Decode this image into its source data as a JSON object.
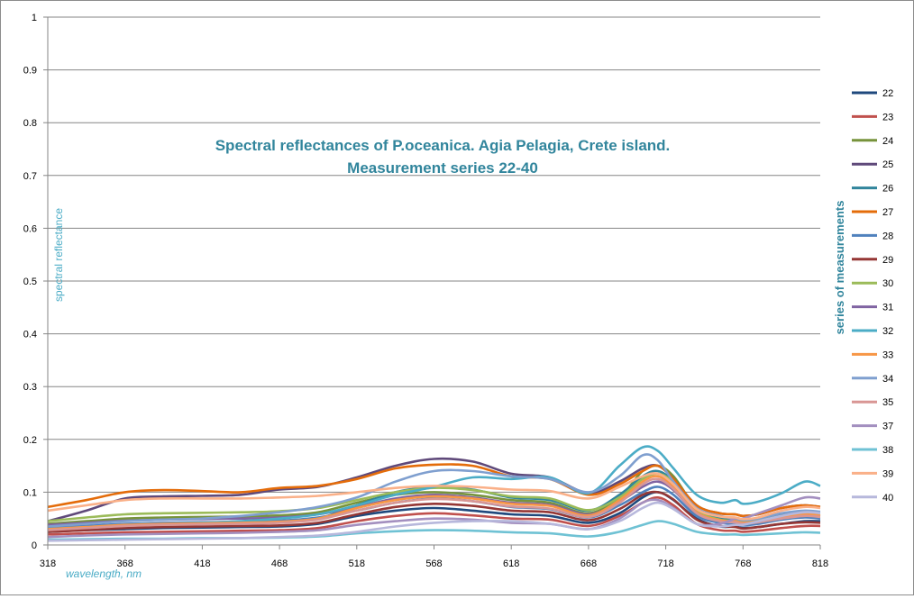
{
  "chart_data": {
    "type": "line",
    "title_lines": [
      "Spectral reflectances of P.oceanica. Agia Pelagia, Crete island.",
      "Measurement series 22-40"
    ],
    "xlabel": "wavelength, nm",
    "ylabel": "spectral reflectance",
    "legend_title": "series of measurements",
    "legend_position": "right",
    "grid": true,
    "xlim": [
      318,
      818
    ],
    "ylim": [
      0,
      1
    ],
    "x_ticks": [
      "318",
      "368",
      "418",
      "468",
      "518",
      "568",
      "618",
      "668",
      "718",
      "768",
      "818"
    ],
    "y_ticks": [
      "0",
      "0.1",
      "0.2",
      "0.3",
      "0.4",
      "0.5",
      "0.6",
      "0.7",
      "0.8",
      "0.9",
      "1"
    ],
    "x": [
      318,
      343,
      368,
      393,
      418,
      443,
      468,
      493,
      518,
      543,
      568,
      593,
      618,
      643,
      668,
      688,
      703,
      713,
      723,
      738,
      753,
      763,
      768,
      778,
      793,
      808,
      818
    ],
    "series": [
      {
        "name": "22",
        "color": "#1f497d",
        "values": [
          0.025,
          0.028,
          0.03,
          0.032,
          0.033,
          0.034,
          0.035,
          0.04,
          0.055,
          0.065,
          0.07,
          0.065,
          0.058,
          0.055,
          0.042,
          0.06,
          0.09,
          0.1,
          0.085,
          0.05,
          0.035,
          0.035,
          0.032,
          0.034,
          0.04,
          0.045,
          0.045
        ]
      },
      {
        "name": "23",
        "color": "#c0504d",
        "values": [
          0.02,
          0.022,
          0.024,
          0.025,
          0.026,
          0.027,
          0.028,
          0.032,
          0.045,
          0.055,
          0.06,
          0.056,
          0.05,
          0.048,
          0.036,
          0.055,
          0.08,
          0.09,
          0.075,
          0.04,
          0.028,
          0.027,
          0.025,
          0.027,
          0.032,
          0.036,
          0.036
        ]
      },
      {
        "name": "24",
        "color": "#77933c",
        "values": [
          0.04,
          0.045,
          0.05,
          0.052,
          0.053,
          0.054,
          0.056,
          0.062,
          0.08,
          0.095,
          0.1,
          0.095,
          0.085,
          0.08,
          0.06,
          0.09,
          0.14,
          0.15,
          0.13,
          0.07,
          0.05,
          0.048,
          0.045,
          0.048,
          0.055,
          0.06,
          0.06
        ]
      },
      {
        "name": "25",
        "color": "#5f497a",
        "values": [
          0.045,
          0.065,
          0.088,
          0.092,
          0.093,
          0.095,
          0.105,
          0.11,
          0.128,
          0.15,
          0.163,
          0.158,
          0.135,
          0.128,
          0.098,
          0.12,
          0.145,
          0.15,
          0.125,
          0.075,
          0.06,
          0.058,
          0.055,
          0.058,
          0.07,
          0.075,
          0.072
        ]
      },
      {
        "name": "26",
        "color": "#31859c",
        "values": [
          0.03,
          0.034,
          0.038,
          0.04,
          0.041,
          0.042,
          0.044,
          0.05,
          0.075,
          0.1,
          0.11,
          0.105,
          0.09,
          0.085,
          0.065,
          0.095,
          0.13,
          0.14,
          0.12,
          0.07,
          0.052,
          0.05,
          0.046,
          0.05,
          0.058,
          0.062,
          0.06
        ]
      },
      {
        "name": "27",
        "color": "#e46c0a",
        "values": [
          0.072,
          0.085,
          0.1,
          0.104,
          0.102,
          0.1,
          0.108,
          0.112,
          0.125,
          0.145,
          0.152,
          0.15,
          0.13,
          0.125,
          0.095,
          0.115,
          0.14,
          0.15,
          0.125,
          0.075,
          0.06,
          0.058,
          0.055,
          0.058,
          0.07,
          0.075,
          0.072
        ]
      },
      {
        "name": "28",
        "color": "#4f81bd",
        "values": [
          0.032,
          0.036,
          0.04,
          0.042,
          0.043,
          0.044,
          0.046,
          0.052,
          0.065,
          0.08,
          0.088,
          0.083,
          0.072,
          0.068,
          0.052,
          0.075,
          0.1,
          0.11,
          0.095,
          0.055,
          0.042,
          0.04,
          0.037,
          0.04,
          0.048,
          0.052,
          0.05
        ]
      },
      {
        "name": "29",
        "color": "#953735",
        "values": [
          0.025,
          0.028,
          0.032,
          0.034,
          0.035,
          0.036,
          0.037,
          0.042,
          0.058,
          0.072,
          0.078,
          0.074,
          0.065,
          0.062,
          0.047,
          0.068,
          0.095,
          0.1,
          0.086,
          0.048,
          0.036,
          0.034,
          0.031,
          0.034,
          0.04,
          0.043,
          0.042
        ]
      },
      {
        "name": "30",
        "color": "#9bbb59",
        "values": [
          0.045,
          0.052,
          0.058,
          0.06,
          0.061,
          0.062,
          0.064,
          0.07,
          0.085,
          0.1,
          0.108,
          0.104,
          0.092,
          0.088,
          0.066,
          0.09,
          0.125,
          0.135,
          0.118,
          0.065,
          0.048,
          0.046,
          0.043,
          0.046,
          0.054,
          0.058,
          0.056
        ]
      },
      {
        "name": "31",
        "color": "#8064a2",
        "values": [
          0.038,
          0.042,
          0.046,
          0.048,
          0.049,
          0.05,
          0.052,
          0.058,
          0.072,
          0.088,
          0.095,
          0.09,
          0.08,
          0.076,
          0.058,
          0.082,
          0.11,
          0.12,
          0.104,
          0.06,
          0.046,
          0.044,
          0.041,
          0.044,
          0.052,
          0.056,
          0.054
        ]
      },
      {
        "name": "32",
        "color": "#4bacc6",
        "values": [
          0.03,
          0.034,
          0.038,
          0.04,
          0.042,
          0.045,
          0.05,
          0.058,
          0.075,
          0.095,
          0.11,
          0.128,
          0.125,
          0.128,
          0.098,
          0.15,
          0.185,
          0.178,
          0.145,
          0.095,
          0.08,
          0.085,
          0.078,
          0.082,
          0.098,
          0.12,
          0.112
        ]
      },
      {
        "name": "33",
        "color": "#f79646",
        "values": [
          0.03,
          0.034,
          0.038,
          0.04,
          0.041,
          0.042,
          0.044,
          0.05,
          0.07,
          0.085,
          0.092,
          0.088,
          0.078,
          0.074,
          0.056,
          0.085,
          0.12,
          0.13,
          0.11,
          0.062,
          0.047,
          0.045,
          0.042,
          0.045,
          0.053,
          0.058,
          0.056
        ]
      },
      {
        "name": "34",
        "color": "#7f9fcf",
        "values": [
          0.035,
          0.04,
          0.045,
          0.048,
          0.05,
          0.055,
          0.062,
          0.072,
          0.09,
          0.12,
          0.14,
          0.14,
          0.13,
          0.125,
          0.1,
          0.13,
          0.17,
          0.16,
          0.12,
          0.07,
          0.055,
          0.05,
          0.047,
          0.05,
          0.06,
          0.065,
          0.063
        ]
      },
      {
        "name": "35",
        "color": "#d99694",
        "values": [
          0.028,
          0.032,
          0.036,
          0.038,
          0.039,
          0.04,
          0.042,
          0.048,
          0.065,
          0.08,
          0.087,
          0.083,
          0.073,
          0.069,
          0.053,
          0.08,
          0.115,
          0.125,
          0.106,
          0.06,
          0.045,
          0.043,
          0.04,
          0.043,
          0.05,
          0.055,
          0.053
        ]
      },
      {
        "name": "37",
        "color": "#a38fbf",
        "values": [
          0.015,
          0.018,
          0.02,
          0.021,
          0.022,
          0.023,
          0.025,
          0.028,
          0.038,
          0.045,
          0.05,
          0.048,
          0.042,
          0.04,
          0.03,
          0.05,
          0.08,
          0.085,
          0.07,
          0.04,
          0.04,
          0.05,
          0.05,
          0.06,
          0.075,
          0.09,
          0.088
        ]
      },
      {
        "name": "38",
        "color": "#6fc2d4",
        "values": [
          0.01,
          0.011,
          0.012,
          0.012,
          0.013,
          0.013,
          0.014,
          0.016,
          0.022,
          0.026,
          0.028,
          0.027,
          0.024,
          0.022,
          0.016,
          0.025,
          0.038,
          0.045,
          0.04,
          0.025,
          0.02,
          0.02,
          0.019,
          0.02,
          0.022,
          0.024,
          0.023
        ]
      },
      {
        "name": "39",
        "color": "#fab088",
        "values": [
          0.065,
          0.075,
          0.085,
          0.088,
          0.088,
          0.088,
          0.09,
          0.093,
          0.1,
          0.108,
          0.112,
          0.11,
          0.105,
          0.102,
          0.088,
          0.11,
          0.13,
          0.135,
          0.115,
          0.068,
          0.054,
          0.052,
          0.049,
          0.052,
          0.065,
          0.072,
          0.07
        ]
      },
      {
        "name": "40",
        "color": "#b7b8dc",
        "values": [
          0.008,
          0.009,
          0.01,
          0.011,
          0.012,
          0.013,
          0.015,
          0.018,
          0.025,
          0.035,
          0.042,
          0.045,
          0.045,
          0.04,
          0.03,
          0.045,
          0.07,
          0.08,
          0.068,
          0.04,
          0.035,
          0.038,
          0.038,
          0.045,
          0.055,
          0.062,
          0.06
        ]
      }
    ]
  }
}
